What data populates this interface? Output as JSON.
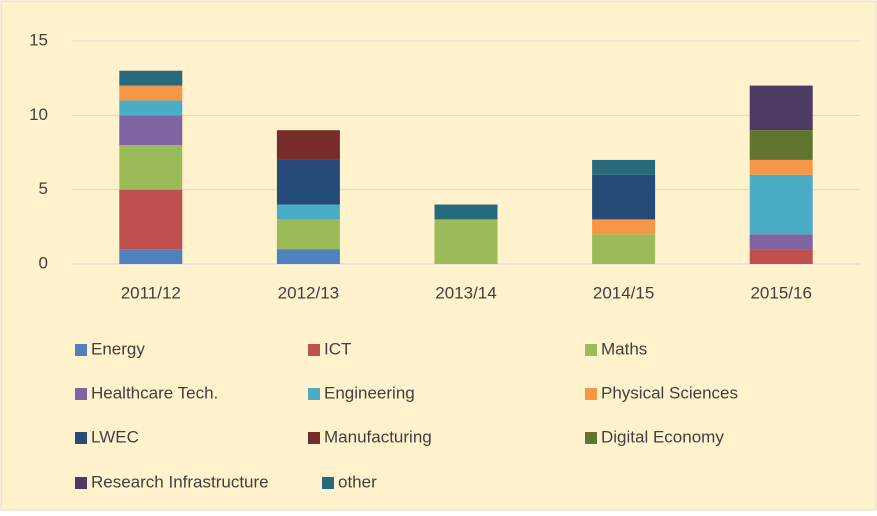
{
  "chart_data": {
    "type": "stacked_bar",
    "categories": [
      "2011/12",
      "2012/13",
      "2013/14",
      "2014/15",
      "2015/16"
    ],
    "series": [
      {
        "name": "Energy",
        "color": "#4f81bd",
        "values": [
          1,
          1,
          0,
          0,
          0
        ]
      },
      {
        "name": "ICT",
        "color": "#c0504d",
        "values": [
          4,
          0,
          0,
          0,
          1
        ]
      },
      {
        "name": "Maths",
        "color": "#9bbb59",
        "values": [
          3,
          2,
          3,
          2,
          0
        ]
      },
      {
        "name": "Healthcare Tech.",
        "color": "#8064a2",
        "values": [
          2,
          0,
          0,
          0,
          1
        ]
      },
      {
        "name": "Engineering",
        "color": "#4bacc6",
        "values": [
          1,
          1,
          0,
          0,
          4
        ]
      },
      {
        "name": "Physical Sciences",
        "color": "#f79646",
        "values": [
          1,
          0,
          0,
          1,
          1
        ]
      },
      {
        "name": "LWEC",
        "color": "#254b79",
        "values": [
          0,
          3,
          0,
          3,
          0
        ]
      },
      {
        "name": "Manufacturing",
        "color": "#772c2a",
        "values": [
          0,
          2,
          0,
          0,
          0
        ]
      },
      {
        "name": "Digital Economy",
        "color": "#5f7530",
        "values": [
          0,
          0,
          0,
          0,
          2
        ]
      },
      {
        "name": "Research Infrastructure",
        "color": "#4d3b62",
        "values": [
          0,
          0,
          0,
          0,
          3
        ]
      },
      {
        "name": "other",
        "color": "#276a7c",
        "values": [
          1,
          0,
          1,
          1,
          0
        ]
      }
    ],
    "ylim": [
      0,
      15
    ],
    "yticks": [
      0,
      5,
      10,
      15
    ],
    "grid": true
  }
}
